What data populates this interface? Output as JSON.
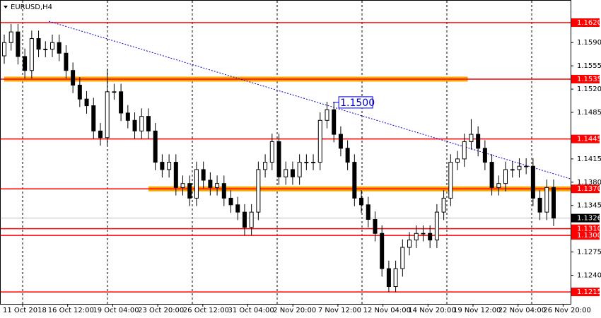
{
  "chart_data": {
    "type": "candlestick",
    "title": "EURUSD,H4",
    "x_labels": [
      "11 Oct 2018",
      "16 Oct 12:00",
      "19 Oct 04:00",
      "23 Oct 20:00",
      "26 Oct 12:00",
      "31 Oct 04:00",
      "2 Nov 20:00",
      "7 Nov 12:00",
      "12 Nov 04:00",
      "14 Nov 20:00",
      "19 Nov 12:00",
      "22 Nov 04:00",
      "26 Nov 20:00"
    ],
    "series": [
      {
        "name": "EURUSD,H4",
        "color": "#000000",
        "open": [
          1.157,
          1.159,
          1.1606,
          1.1569,
          1.1548,
          1.1596,
          1.158,
          1.158,
          1.159,
          1.1574,
          1.1548,
          1.1526,
          1.1505,
          1.1495,
          1.1457,
          1.1447,
          1.1516,
          1.1516,
          1.1484,
          1.1473,
          1.1457,
          1.1479,
          1.1457,
          1.141,
          1.1399,
          1.141,
          1.1372,
          1.1378,
          1.1356,
          1.1399,
          1.1383,
          1.1372,
          1.1378,
          1.1356,
          1.1346,
          1.1335,
          1.1312,
          1.1335,
          1.1399,
          1.141,
          1.1441,
          1.1388,
          1.1399,
          1.1388,
          1.141,
          1.141,
          1.141,
          1.1473,
          1.1489,
          1.1452,
          1.1431,
          1.141,
          1.1356,
          1.1346,
          1.1324,
          1.1303,
          1.125,
          1.1223,
          1.125,
          1.1282,
          1.1293,
          1.1303,
          1.1303,
          1.1293,
          1.1335,
          1.1356,
          1.141,
          1.1415,
          1.1441,
          1.1452,
          1.1431,
          1.141,
          1.1372,
          1.1378,
          1.1399,
          1.1399,
          1.1404,
          1.1404,
          1.1356,
          1.1335,
          1.1372
        ],
        "high": [
          1.1602,
          1.1618,
          1.1618,
          1.1581,
          1.1608,
          1.1608,
          1.1592,
          1.1602,
          1.1602,
          1.1586,
          1.156,
          1.1538,
          1.1517,
          1.1507,
          1.1469,
          1.155,
          1.1528,
          1.1528,
          1.1496,
          1.1485,
          1.1491,
          1.1491,
          1.1469,
          1.1422,
          1.1422,
          1.1422,
          1.139,
          1.139,
          1.1411,
          1.1411,
          1.1395,
          1.139,
          1.139,
          1.1368,
          1.1358,
          1.1347,
          1.1347,
          1.1411,
          1.1422,
          1.1453,
          1.1453,
          1.1411,
          1.1411,
          1.1422,
          1.1422,
          1.1422,
          1.1485,
          1.1501,
          1.1501,
          1.1464,
          1.1443,
          1.1422,
          1.1368,
          1.1358,
          1.1336,
          1.1315,
          1.1262,
          1.1262,
          1.1294,
          1.1305,
          1.1315,
          1.1315,
          1.1315,
          1.1347,
          1.1368,
          1.1422,
          1.1427,
          1.1453,
          1.1475,
          1.1464,
          1.1443,
          1.1422,
          1.139,
          1.1411,
          1.1411,
          1.1416,
          1.1416,
          1.1416,
          1.1368,
          1.1384,
          1.1384
        ],
        "low": [
          1.1558,
          1.1578,
          1.1557,
          1.1536,
          1.1536,
          1.1568,
          1.1568,
          1.1568,
          1.1562,
          1.1536,
          1.1514,
          1.1493,
          1.1483,
          1.1445,
          1.1435,
          1.1435,
          1.1504,
          1.1472,
          1.1461,
          1.1445,
          1.1445,
          1.1445,
          1.1398,
          1.1387,
          1.1387,
          1.136,
          1.136,
          1.1344,
          1.1344,
          1.1371,
          1.136,
          1.136,
          1.1344,
          1.1334,
          1.1323,
          1.13,
          1.13,
          1.1323,
          1.1387,
          1.1398,
          1.1376,
          1.1376,
          1.1376,
          1.1376,
          1.1398,
          1.1398,
          1.1398,
          1.1461,
          1.144,
          1.1419,
          1.1398,
          1.1344,
          1.1334,
          1.1312,
          1.1291,
          1.1238,
          1.1215,
          1.1215,
          1.1238,
          1.127,
          1.1281,
          1.1291,
          1.1281,
          1.1281,
          1.1323,
          1.1344,
          1.1398,
          1.1403,
          1.1429,
          1.1419,
          1.1398,
          1.136,
          1.136,
          1.1366,
          1.1387,
          1.1387,
          1.1392,
          1.1344,
          1.1323,
          1.1323,
          1.1314
        ],
        "close": [
          1.159,
          1.1606,
          1.1569,
          1.1548,
          1.1596,
          1.158,
          1.158,
          1.159,
          1.1574,
          1.1548,
          1.1526,
          1.1505,
          1.1495,
          1.1457,
          1.1447,
          1.1516,
          1.1516,
          1.1484,
          1.1473,
          1.1457,
          1.1479,
          1.1457,
          1.141,
          1.1399,
          1.141,
          1.1372,
          1.1378,
          1.1356,
          1.1399,
          1.1383,
          1.1372,
          1.1378,
          1.1356,
          1.1346,
          1.1335,
          1.1312,
          1.1335,
          1.1399,
          1.141,
          1.1441,
          1.1388,
          1.1399,
          1.1388,
          1.141,
          1.141,
          1.141,
          1.1473,
          1.1489,
          1.1452,
          1.1431,
          1.141,
          1.1356,
          1.1346,
          1.1324,
          1.1303,
          1.125,
          1.1223,
          1.125,
          1.1282,
          1.1293,
          1.1303,
          1.1303,
          1.1293,
          1.1335,
          1.1356,
          1.141,
          1.1415,
          1.1441,
          1.1452,
          1.1431,
          1.141,
          1.1372,
          1.1378,
          1.1399,
          1.1399,
          1.1404,
          1.1404,
          1.1356,
          1.1335,
          1.1372,
          1.1326
        ]
      }
    ],
    "ylim": [
      1.1197,
      1.1654
    ],
    "yticks": [
      {
        "value": 1.159,
        "label": "1.1590"
      },
      {
        "value": 1.1555,
        "label": "1.1555"
      },
      {
        "value": 1.152,
        "label": "1.1520"
      },
      {
        "value": 1.1485,
        "label": "1.1485"
      },
      {
        "value": 1.1415,
        "label": "1.1415"
      },
      {
        "value": 1.138,
        "label": "1.1380"
      },
      {
        "value": 1.1345,
        "label": "1.1345"
      },
      {
        "value": 1.1275,
        "label": "1.1275"
      },
      {
        "value": 1.124,
        "label": "1.1240"
      }
    ],
    "levels": [
      {
        "value": 1.162,
        "label": "1.1620",
        "color": "#ff0000"
      },
      {
        "value": 1.1535,
        "label": "1.1535",
        "color": "#ff0000"
      },
      {
        "value": 1.1445,
        "label": "1.1445",
        "color": "#ff0000"
      },
      {
        "value": 1.137,
        "label": "1.1370",
        "color": "#ff0000"
      },
      {
        "value": 1.131,
        "label": "1.1310",
        "color": "#ff0000"
      },
      {
        "value": 1.13,
        "label": "1.1300",
        "color": "#ff0000"
      },
      {
        "value": 1.1215,
        "label": "1.1215",
        "color": "#ff0000"
      }
    ],
    "zones": [
      {
        "value": 1.1535,
        "from": 0,
        "to": 67.5,
        "color": "#ffa500"
      },
      {
        "value": 1.137,
        "from": 21,
        "to": 83,
        "color": "#ffa500"
      }
    ],
    "current_price": {
      "value": 1.1326,
      "label": "1.1326"
    },
    "trendline": {
      "start": [
        6.5,
        1.1622
      ],
      "end": [
        82.5,
        1.1385
      ],
      "color": "#0000cc"
    },
    "annotation": {
      "value": 1.15,
      "label": "1.1500",
      "at": 48.3,
      "color": "#0000cc"
    },
    "grid": true
  }
}
